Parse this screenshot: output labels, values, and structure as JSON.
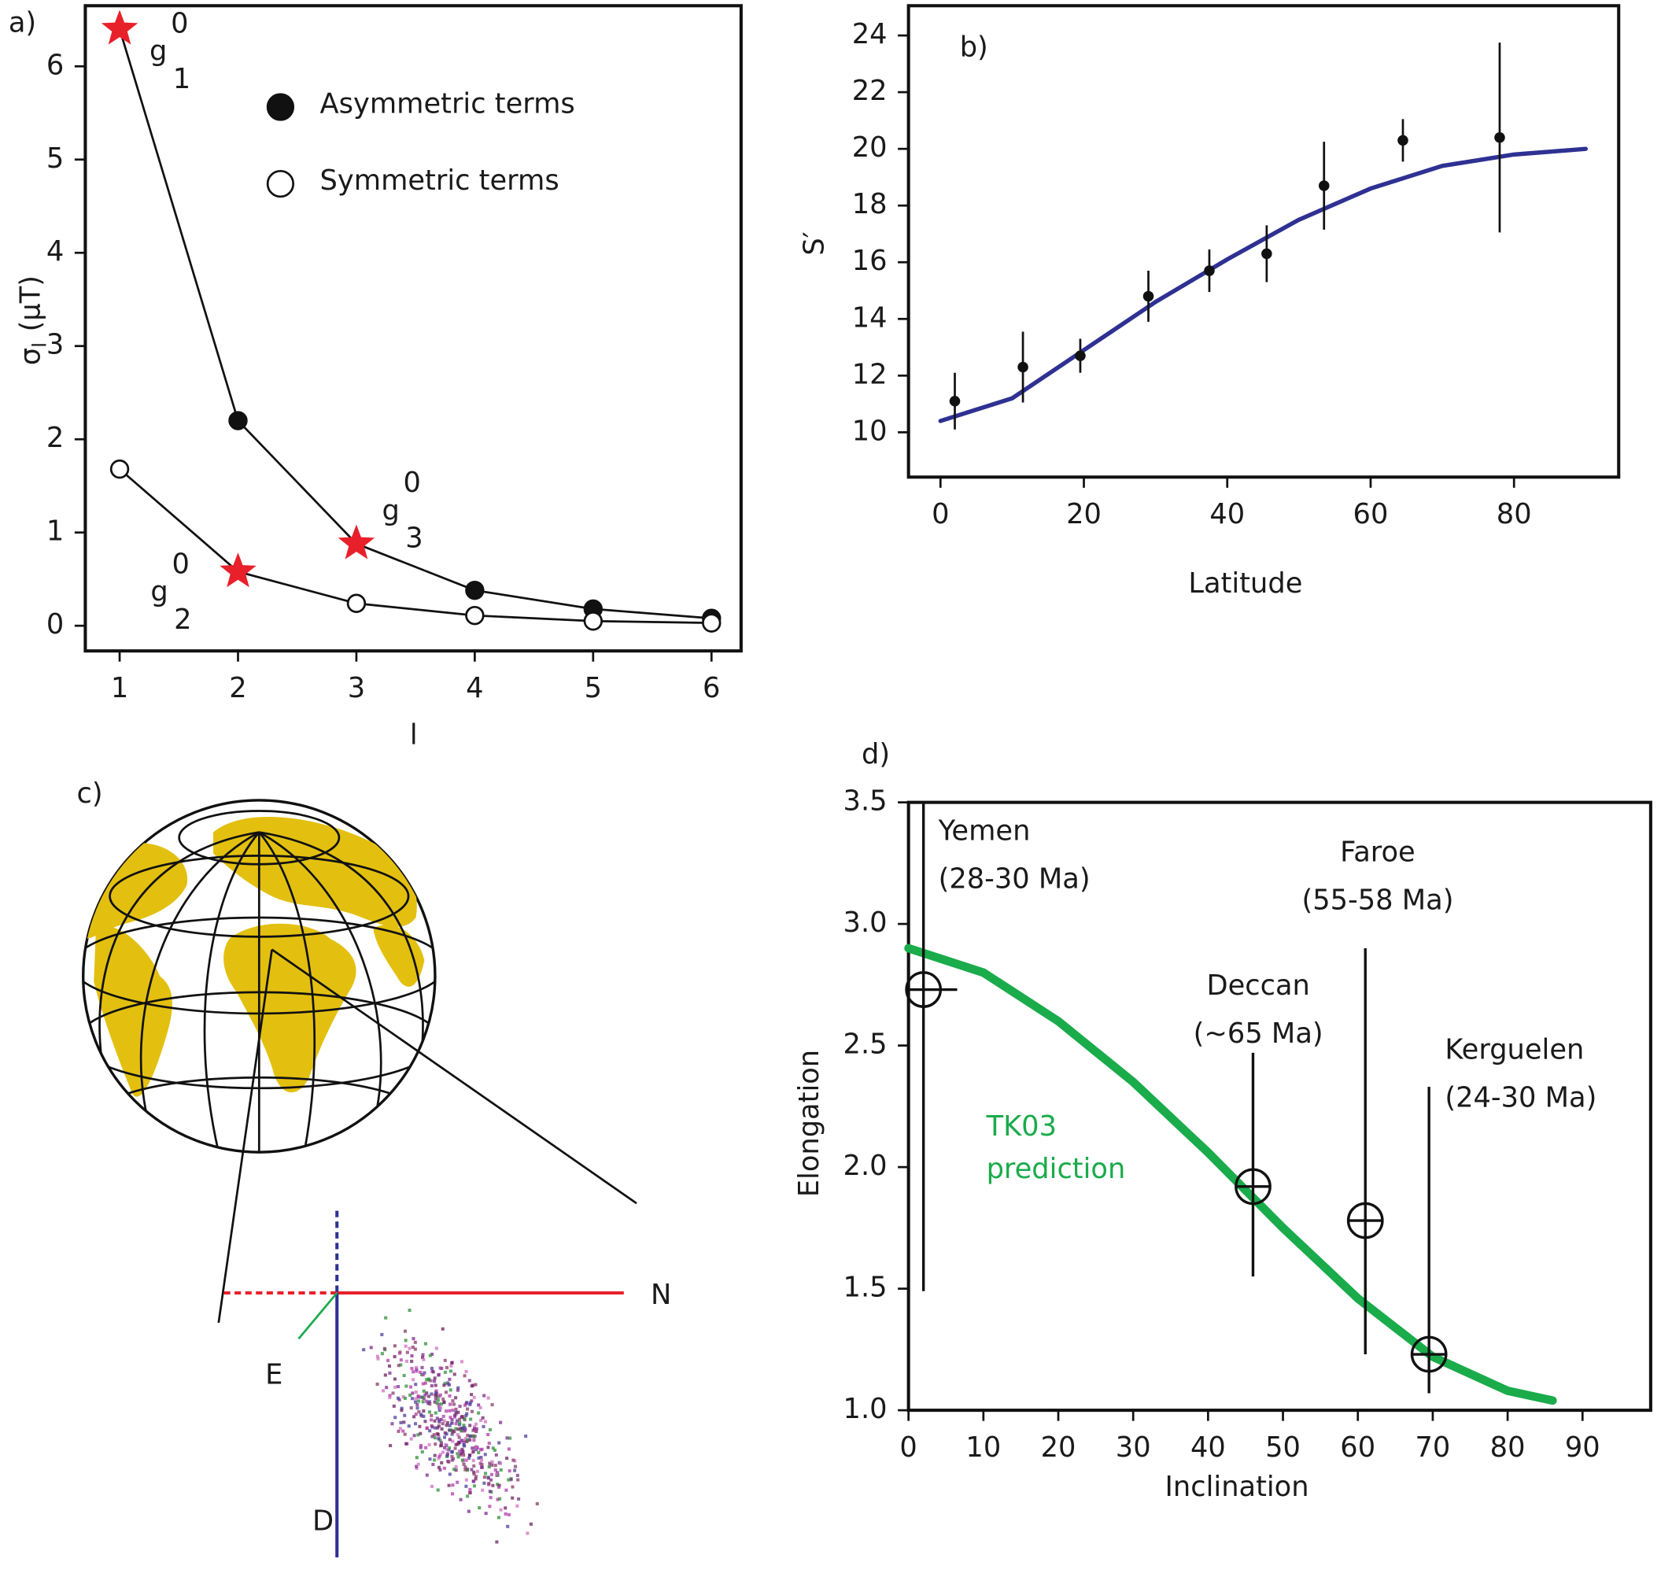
{
  "chart_data": [
    {
      "type": "line",
      "panel_label": "a)",
      "x": [
        1,
        2,
        3,
        4,
        5,
        6
      ],
      "series": [
        {
          "name": "Asymmetric terms",
          "marker": "filled",
          "color": "#111111",
          "values": [
            6.4,
            2.2,
            0.88,
            0.38,
            0.18,
            0.08
          ]
        },
        {
          "name": "Symmetric terms",
          "marker": "open",
          "color": "#111111",
          "values": [
            1.68,
            0.58,
            0.24,
            0.11,
            0.05,
            0.03
          ]
        }
      ],
      "stars": [
        {
          "series": 0,
          "index": 0,
          "base": "g",
          "sup": "0",
          "sub": "1"
        },
        {
          "series": 1,
          "index": 1,
          "base": "g",
          "sup": "0",
          "sub": "2"
        },
        {
          "series": 0,
          "index": 2,
          "base": "g",
          "sup": "0",
          "sub": "3"
        }
      ],
      "star_color": "#e8202a",
      "xlabel": "l",
      "ylabel": {
        "symbol": "σ",
        "sub": "l",
        "unit": "(μT)"
      },
      "xlim": [
        0.71,
        6.25
      ],
      "ylim": [
        -0.27,
        6.65
      ],
      "xticks": [
        1,
        2,
        3,
        4,
        5,
        6
      ],
      "yticks": [
        0,
        1,
        2,
        3,
        4,
        5,
        6
      ]
    },
    {
      "type": "scatter",
      "panel_label": "b)",
      "points": {
        "x": [
          2,
          11.5,
          19.5,
          29,
          37.5,
          45.5,
          53.5,
          64.5,
          78
        ],
        "values": [
          11.1,
          12.3,
          12.7,
          14.8,
          15.7,
          16.3,
          18.7,
          20.3,
          20.4
        ],
        "errors": [
          1.0,
          1.25,
          0.6,
          0.9,
          0.75,
          1.0,
          1.55,
          0.75,
          3.35
        ],
        "color": "#111111"
      },
      "curve": {
        "x": [
          0,
          10,
          20,
          30,
          40,
          50,
          60,
          70,
          80,
          90
        ],
        "values": [
          10.4,
          11.2,
          12.9,
          14.6,
          16.1,
          17.5,
          18.6,
          19.4,
          19.8,
          20.0
        ],
        "color": "#2e3192"
      },
      "xlabel": "Latitude",
      "ylabel": "S′",
      "xlim": [
        -4.46,
        94.6
      ],
      "ylim": [
        8.42,
        25.05
      ],
      "xticks": [
        0,
        20,
        40,
        60,
        80
      ],
      "yticks": [
        10,
        12,
        14,
        16,
        18,
        20,
        22,
        24
      ]
    },
    {
      "type": "scatter",
      "panel_label": "d)",
      "points": {
        "x": [
          2,
          46,
          61,
          69.5
        ],
        "values": [
          2.73,
          1.92,
          1.78,
          1.23
        ],
        "lower": [
          1.49,
          1.55,
          1.23,
          1.07
        ],
        "upper": [
          3.5,
          2.47,
          2.9,
          2.33
        ],
        "xerr": [
          4.5,
          null,
          null,
          null
        ],
        "labels": [
          "Yemen",
          "Deccan",
          "Faroe",
          "Kerguelen"
        ],
        "ages": [
          "(28-30 Ma)",
          "(~65 Ma)",
          "(55-58 Ma)",
          "(24-30 Ma)"
        ],
        "color": "#111111"
      },
      "curve": {
        "x": [
          0,
          10,
          20,
          30,
          40,
          50,
          60,
          70,
          80,
          86
        ],
        "values": [
          2.9,
          2.8,
          2.6,
          2.35,
          2.06,
          1.75,
          1.46,
          1.22,
          1.08,
          1.04
        ],
        "color": "#1aab4b",
        "label": [
          "TK03",
          "prediction"
        ]
      },
      "xlabel": "Inclination",
      "ylabel": "Elongation",
      "xlim": [
        0,
        99.1
      ],
      "ylim": [
        1.0,
        3.5
      ],
      "xticks": [
        0,
        10,
        20,
        30,
        40,
        50,
        60,
        70,
        80,
        90
      ],
      "yticks": [
        {
          "value": 1,
          "label": "1.0"
        },
        1.5,
        {
          "value": 2,
          "label": "2.0"
        },
        2.5,
        {
          "value": 3,
          "label": "3.0"
        },
        3.5
      ]
    }
  ],
  "panel_c": {
    "label": "c)",
    "axes": {
      "north": "N",
      "east": "E",
      "down": "D"
    }
  }
}
